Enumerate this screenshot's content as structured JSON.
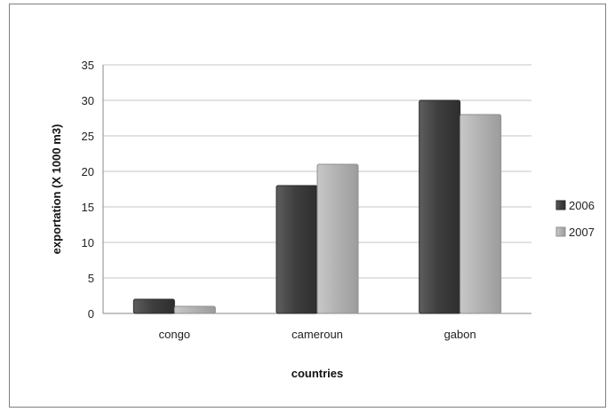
{
  "chart_data": {
    "type": "bar",
    "categories": [
      "congo",
      "cameroun",
      "gabon"
    ],
    "series": [
      {
        "name": "2006",
        "values": [
          2,
          18,
          30
        ],
        "color": "#4d4d4d"
      },
      {
        "name": "2007",
        "values": [
          1,
          21,
          28
        ],
        "color": "#b5b5b5"
      }
    ],
    "xlabel": "countries",
    "ylabel": "exportation (X 1000 m3)",
    "ylim": [
      0,
      35
    ],
    "yticks": [
      "0",
      "5",
      "10",
      "15",
      "20",
      "25",
      "30",
      "35"
    ],
    "grid": true,
    "legend": "right"
  }
}
